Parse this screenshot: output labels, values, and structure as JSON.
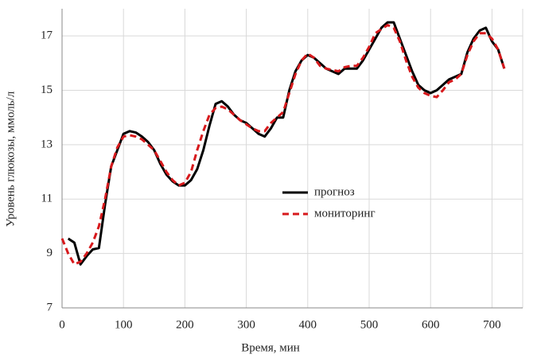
{
  "chart_data": {
    "type": "line",
    "xlabel": "Время, мин",
    "ylabel": "Уровень глюкозы,  ммоль/л",
    "x": [
      0,
      10,
      20,
      30,
      40,
      50,
      60,
      70,
      80,
      90,
      100,
      110,
      120,
      130,
      140,
      150,
      160,
      170,
      180,
      190,
      200,
      210,
      220,
      230,
      240,
      250,
      260,
      270,
      280,
      290,
      300,
      310,
      320,
      330,
      340,
      350,
      360,
      370,
      380,
      390,
      400,
      410,
      420,
      430,
      440,
      450,
      460,
      470,
      480,
      490,
      500,
      510,
      520,
      530,
      540,
      550,
      560,
      570,
      580,
      590,
      600,
      610,
      620,
      630,
      640,
      650,
      660,
      670,
      680,
      690,
      700,
      710,
      720
    ],
    "series": [
      {
        "name": "прогноз",
        "color": "#000000",
        "dash": false,
        "values": [
          null,
          9.55,
          9.4,
          8.6,
          8.9,
          9.15,
          9.2,
          10.8,
          12.2,
          12.8,
          13.4,
          13.5,
          13.45,
          13.3,
          13.1,
          12.8,
          12.3,
          11.9,
          11.65,
          11.5,
          11.5,
          11.7,
          12.1,
          12.8,
          13.7,
          14.5,
          14.6,
          14.4,
          14.1,
          13.9,
          13.8,
          13.6,
          13.4,
          13.3,
          13.6,
          14.0,
          14.0,
          15.0,
          15.7,
          16.1,
          16.3,
          16.2,
          16.0,
          15.8,
          15.7,
          15.6,
          15.8,
          15.8,
          15.8,
          16.1,
          16.5,
          16.9,
          17.3,
          17.5,
          17.5,
          16.9,
          16.3,
          15.7,
          15.2,
          15.0,
          14.9,
          15.0,
          15.2,
          15.4,
          15.5,
          15.6,
          16.4,
          16.9,
          17.2,
          17.3,
          16.8,
          16.5,
          15.8
        ]
      },
      {
        "name": "мониторинг",
        "color": "#d7191c",
        "dash": true,
        "values": [
          9.55,
          9.0,
          8.6,
          8.7,
          9.0,
          9.4,
          10.0,
          11.0,
          12.2,
          12.9,
          13.3,
          13.35,
          13.3,
          13.2,
          13.0,
          12.8,
          12.4,
          12.0,
          11.7,
          11.5,
          11.6,
          12.0,
          12.8,
          13.5,
          14.1,
          14.35,
          14.4,
          14.3,
          14.1,
          13.9,
          13.75,
          13.6,
          13.5,
          13.5,
          13.8,
          14.0,
          14.2,
          14.9,
          15.6,
          16.1,
          16.35,
          16.2,
          15.9,
          15.8,
          15.75,
          15.7,
          15.85,
          15.9,
          15.9,
          16.2,
          16.6,
          17.1,
          17.25,
          17.4,
          17.3,
          16.8,
          16.1,
          15.5,
          15.1,
          14.9,
          14.8,
          14.75,
          15.0,
          15.3,
          15.4,
          15.6,
          16.3,
          16.8,
          17.1,
          17.1,
          16.9,
          16.5,
          15.8
        ]
      }
    ],
    "xlim": [
      0,
      750
    ],
    "xticks": [
      0,
      100,
      200,
      300,
      400,
      500,
      600,
      700
    ],
    "ylim": [
      7,
      18
    ],
    "yticks": [
      7,
      9,
      11,
      13,
      15,
      17
    ],
    "grid": true
  }
}
